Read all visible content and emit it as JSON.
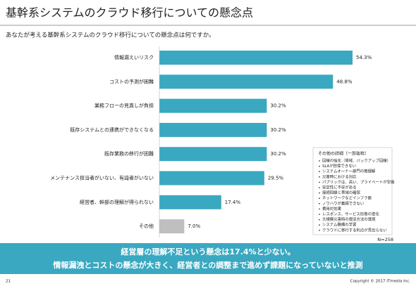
{
  "header": {
    "title": "基幹系システムのクラウド移行についての懸念点",
    "subtitle": "あなたが考える基幹系システムのクラウド移行についての懸念点は何ですか。"
  },
  "chart_data": {
    "type": "bar",
    "orientation": "horizontal",
    "categories": [
      "情報漏えいリスク",
      "コストの予測が困難",
      "業務フローの見直しが負担",
      "既存システムとの連携ができなくなる",
      "既存業務の移行が困難",
      "メンテナンス担当者がいない、有識者がいない",
      "経営者、幹部の理解が得られない",
      "その他"
    ],
    "values": [
      54.3,
      48.8,
      30.2,
      30.2,
      30.2,
      29.5,
      17.4,
      7.0
    ],
    "value_labels": [
      "54.3%",
      "48.8%",
      "30.2%",
      "30.2%",
      "30.2%",
      "29.5%",
      "17.4%",
      "7.0%"
    ],
    "colors": [
      "#3aa8c1",
      "#3aa8c1",
      "#3aa8c1",
      "#3aa8c1",
      "#3aa8c1",
      "#3aa8c1",
      "#3aa8c1",
      "#bfbfbf"
    ]
  },
  "note": {
    "title": "その他の詳細（一部抜粋）",
    "items": [
      "回線の強化（帯域、バックアップ回線）",
      "SLAが担保できない",
      "システムオーナー部門の無理解",
      "災害時における対応",
      "パブリックは、高い、プライベートが安価",
      "安定性に不安がある",
      "接続回線と帯域の確保",
      "ネットワークなどインフラ面",
      "ノウハウが蓄積できない",
      "費用対効果",
      "レスポンス、サービス形態の変化",
      "大規模災害時の復旧方法の環境",
      "システム機構の学習",
      "クラウドに移行する利点が見出らない"
    ]
  },
  "sample_size": "N=258",
  "banner": {
    "lines": [
      "経営層の理解不足という懸念は17.4%と少ない。",
      "情報漏洩とコストの懸念が大きく、経営者との調整まで進めず課題になっていないと推測"
    ]
  },
  "footer": {
    "page": "21",
    "copyright": "Copyright © 2017 ITmedia Inc."
  }
}
